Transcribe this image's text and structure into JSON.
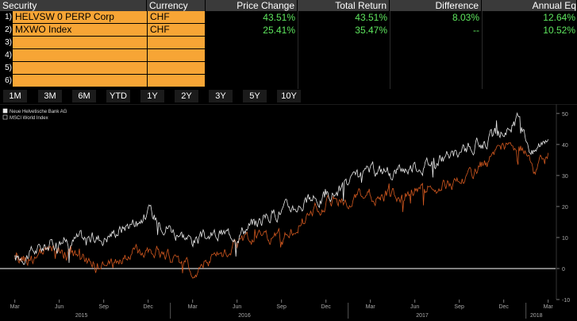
{
  "table": {
    "headers": {
      "security": "Security",
      "currency": "Currency",
      "price_change": "Price Change",
      "total_return": "Total Return",
      "difference": "Difference",
      "annual_eq": "Annual Eq"
    },
    "rows": [
      {
        "num": "1)",
        "security": "HELVSW 0 PERP Corp",
        "currency": "CHF",
        "price_change": "43.51%",
        "total_return": "43.51%",
        "difference": "8.03%",
        "annual_eq": "12.64%"
      },
      {
        "num": "2)",
        "security": "MXWO Index",
        "currency": "CHF",
        "price_change": "25.41%",
        "total_return": "35.47%",
        "difference": "--",
        "annual_eq": "10.52%"
      },
      {
        "num": "3)",
        "security": "",
        "currency": "",
        "price_change": "",
        "total_return": "",
        "difference": "",
        "annual_eq": ""
      },
      {
        "num": "4)",
        "security": "",
        "currency": "",
        "price_change": "",
        "total_return": "",
        "difference": "",
        "annual_eq": ""
      },
      {
        "num": "5)",
        "security": "",
        "currency": "",
        "price_change": "",
        "total_return": "",
        "difference": "",
        "annual_eq": ""
      },
      {
        "num": "6)",
        "security": "",
        "currency": "",
        "price_change": "",
        "total_return": "",
        "difference": "",
        "annual_eq": ""
      }
    ]
  },
  "ranges": [
    "1M",
    "3M",
    "6M",
    "YTD",
    "1Y",
    "2Y",
    "3Y",
    "5Y",
    "10Y"
  ],
  "colors": {
    "orange": "#f7a535",
    "green_text": "#5ee65e",
    "series1": "#e8e8e8",
    "series2": "#d2581f"
  },
  "chart_data": {
    "type": "line",
    "series": [
      {
        "name": "Neue Helvetische Bank AG",
        "x": [
          "2015-03",
          "2015-06",
          "2015-09",
          "2015-12",
          "2016-03",
          "2016-06",
          "2016-09",
          "2016-12",
          "2017-03",
          "2017-06",
          "2017-09",
          "2017-12",
          "2018-01",
          "2018-02",
          "2018-03"
        ],
        "values": [
          3,
          9,
          10,
          18,
          9,
          12,
          19,
          23,
          31,
          33,
          37,
          44,
          48,
          37,
          44
        ]
      },
      {
        "name": "MSCI World Index",
        "x": [
          "2015-03",
          "2015-06",
          "2015-09",
          "2015-12",
          "2016-03",
          "2016-06",
          "2016-09",
          "2016-12",
          "2017-03",
          "2017-06",
          "2017-09",
          "2017-12",
          "2018-01",
          "2018-02",
          "2018-03"
        ],
        "values": [
          2,
          6,
          0,
          7,
          0,
          8,
          10,
          21,
          23,
          25,
          28,
          38,
          41,
          31,
          36
        ]
      }
    ],
    "ylim": [
      -10,
      52
    ],
    "y_ticks": [
      "-10",
      "0",
      "10",
      "20",
      "30",
      "40",
      "50"
    ],
    "x_tick_labels": [
      "Mar",
      "Jun",
      "Sep",
      "Dec",
      "Mar",
      "Jun",
      "Sep",
      "Dec",
      "Mar",
      "Jun",
      "Sep",
      "Dec",
      "Mar"
    ],
    "year_labels": [
      "2015",
      "2016",
      "2017",
      "2018"
    ],
    "zero_line": true,
    "legend_placement": "top-left"
  }
}
